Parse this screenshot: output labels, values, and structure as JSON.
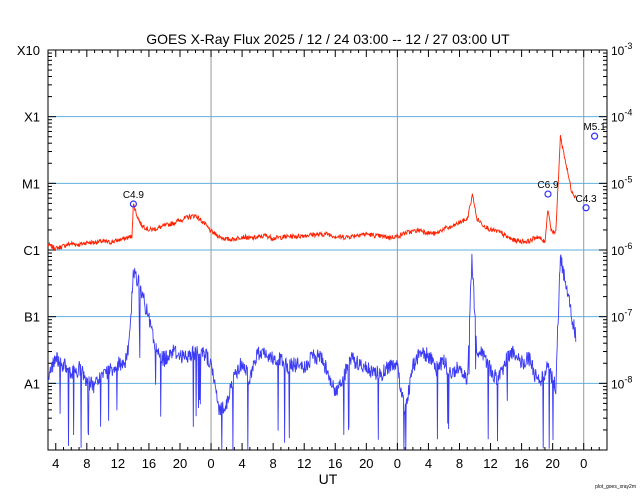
{
  "chart_data": {
    "type": "line",
    "title": "GOES X-Ray Flux   2025 / 12 / 24   03:00 -- 12 / 27   03:00   UT",
    "xlabel": "UT",
    "credit": "plot_goes_xray2m",
    "x_range_hours": [
      0,
      72
    ],
    "x_tick_labels": [
      "4",
      "8",
      "12",
      "16",
      "20",
      "0",
      "4",
      "8",
      "12",
      "16",
      "20",
      "0",
      "4",
      "8",
      "12",
      "16",
      "20",
      "0"
    ],
    "x_tick_hours": [
      1,
      5,
      9,
      13,
      17,
      21,
      25,
      29,
      33,
      37,
      41,
      45,
      49,
      53,
      57,
      61,
      65,
      69
    ],
    "day_boundaries_hours": [
      21,
      45,
      69
    ],
    "y_scale": "log",
    "ylim": [
      1e-09,
      0.001
    ],
    "left_axis_labels": [
      {
        "text": "X10",
        "value": 0.001
      },
      {
        "text": "X1",
        "value": 0.0001
      },
      {
        "text": "M1",
        "value": 1e-05
      },
      {
        "text": "C1",
        "value": 1e-06
      },
      {
        "text": "B1",
        "value": 1e-07
      },
      {
        "text": "A1",
        "value": 1e-08
      }
    ],
    "right_axis_labels": [
      {
        "base": "10",
        "exp": "-3",
        "value": 0.001
      },
      {
        "base": "10",
        "exp": "-4",
        "value": 0.0001
      },
      {
        "base": "10",
        "exp": "-5",
        "value": 1e-05
      },
      {
        "base": "10",
        "exp": "-6",
        "value": 1e-06
      },
      {
        "base": "10",
        "exp": "-7",
        "value": 1e-07
      },
      {
        "base": "10",
        "exp": "-8",
        "value": 1e-08
      }
    ],
    "class_gridlines": [
      0.0001,
      1e-05,
      1e-06,
      1e-07,
      1e-08
    ],
    "flares": [
      {
        "label": "C4.9",
        "x": 11.0,
        "y": 4.9e-06
      },
      {
        "label": "C6.9",
        "x": 64.4,
        "y": 6.9e-06
      },
      {
        "label": "C4.3",
        "x": 69.3,
        "y": 4.3e-06
      },
      {
        "label": "M5.1",
        "x": 70.4,
        "y": 5.1e-05
      }
    ],
    "series": [
      {
        "color": "#ff2000",
        "points": [
          [
            0,
            1.2e-06
          ],
          [
            1,
            1.05e-06
          ],
          [
            2,
            1.15e-06
          ],
          [
            3,
            1.25e-06
          ],
          [
            4,
            1.2e-06
          ],
          [
            5,
            1.3e-06
          ],
          [
            6,
            1.3e-06
          ],
          [
            7,
            1.35e-06
          ],
          [
            8,
            1.3e-06
          ],
          [
            9,
            1.4e-06
          ],
          [
            10,
            1.5e-06
          ],
          [
            10.8,
            1.6e-06
          ],
          [
            11,
            4.9e-06
          ],
          [
            11.5,
            3.2e-06
          ],
          [
            12,
            2.4e-06
          ],
          [
            13,
            2e-06
          ],
          [
            14,
            2.1e-06
          ],
          [
            15,
            2.3e-06
          ],
          [
            16,
            2.5e-06
          ],
          [
            17,
            2.8e-06
          ],
          [
            18,
            3.1e-06
          ],
          [
            19,
            3.3e-06
          ],
          [
            20,
            2.6e-06
          ],
          [
            21,
            1.9e-06
          ],
          [
            22,
            1.6e-06
          ],
          [
            23,
            1.45e-06
          ],
          [
            24,
            1.45e-06
          ],
          [
            25,
            1.6e-06
          ],
          [
            26,
            1.5e-06
          ],
          [
            27,
            1.55e-06
          ],
          [
            28,
            1.65e-06
          ],
          [
            29,
            1.5e-06
          ],
          [
            30,
            1.55e-06
          ],
          [
            31,
            1.6e-06
          ],
          [
            32,
            1.6e-06
          ],
          [
            33,
            1.65e-06
          ],
          [
            34,
            1.7e-06
          ],
          [
            35,
            1.7e-06
          ],
          [
            36,
            1.75e-06
          ],
          [
            37,
            1.6e-06
          ],
          [
            38,
            1.55e-06
          ],
          [
            39,
            1.6e-06
          ],
          [
            40,
            1.7e-06
          ],
          [
            41,
            1.75e-06
          ],
          [
            42,
            1.65e-06
          ],
          [
            43,
            1.6e-06
          ],
          [
            44,
            1.55e-06
          ],
          [
            45,
            1.6e-06
          ],
          [
            46,
            1.8e-06
          ],
          [
            47,
            1.9e-06
          ],
          [
            48,
            2e-06
          ],
          [
            49,
            1.8e-06
          ],
          [
            50,
            1.75e-06
          ],
          [
            51,
            2.1e-06
          ],
          [
            52,
            2.2e-06
          ],
          [
            53,
            2.6e-06
          ],
          [
            54,
            2.9e-06
          ],
          [
            54.7,
            6.9e-06
          ],
          [
            55.2,
            3e-06
          ],
          [
            56,
            2.4e-06
          ],
          [
            57,
            2e-06
          ],
          [
            58,
            1.9e-06
          ],
          [
            59,
            1.6e-06
          ],
          [
            60,
            1.4e-06
          ],
          [
            61,
            1.35e-06
          ],
          [
            62,
            1.35e-06
          ],
          [
            63,
            1.6e-06
          ],
          [
            64,
            1.3e-06
          ],
          [
            64.4,
            4.3e-06
          ],
          [
            64.8,
            2e-06
          ],
          [
            65.4,
            1.8e-06
          ],
          [
            66.0,
            5.1e-05
          ],
          [
            66.7,
            2e-05
          ],
          [
            67.4,
            8e-06
          ],
          [
            68.0,
            6e-06
          ]
        ]
      },
      {
        "color": "#3b3bf5",
        "points": [
          [
            0,
            1.3e-08
          ],
          [
            1,
            2.5e-08
          ],
          [
            2,
            1.9e-08
          ],
          [
            3,
            1.3e-08
          ],
          [
            4,
            1.7e-08
          ],
          [
            5,
            1.1e-08
          ],
          [
            6,
            9e-09
          ],
          [
            7,
            1.3e-08
          ],
          [
            8,
            1.6e-08
          ],
          [
            9,
            1.9e-08
          ],
          [
            10,
            2.1e-08
          ],
          [
            10.5,
            4.5e-08
          ],
          [
            11,
            5e-07
          ],
          [
            12,
            2.5e-07
          ],
          [
            13,
            9e-08
          ],
          [
            14,
            2.9e-08
          ],
          [
            15,
            2.3e-08
          ],
          [
            16,
            3.1e-08
          ],
          [
            17,
            2.7e-08
          ],
          [
            18,
            2.4e-08
          ],
          [
            19,
            2.9e-08
          ],
          [
            20,
            3.1e-08
          ],
          [
            21,
            1.9e-08
          ],
          [
            22,
            4e-09
          ],
          [
            23,
            5e-09
          ],
          [
            24,
            1.3e-08
          ],
          [
            25,
            2.1e-08
          ],
          [
            26,
            1.2e-08
          ],
          [
            27,
            2.8e-08
          ],
          [
            28,
            3e-08
          ],
          [
            29,
            2.3e-08
          ],
          [
            30,
            2.2e-08
          ],
          [
            31,
            1.8e-08
          ],
          [
            32,
            1.9e-08
          ],
          [
            33,
            1.7e-08
          ],
          [
            34,
            2.4e-08
          ],
          [
            35,
            2.6e-08
          ],
          [
            36,
            1.6e-08
          ],
          [
            37,
            7e-09
          ],
          [
            38,
            1.2e-08
          ],
          [
            39,
            2.3e-08
          ],
          [
            40,
            2e-08
          ],
          [
            41,
            1.6e-08
          ],
          [
            42,
            1.5e-08
          ],
          [
            43,
            1.4e-08
          ],
          [
            44,
            1.9e-08
          ],
          [
            45,
            1.7e-08
          ],
          [
            46,
            4e-09
          ],
          [
            47,
            1.8e-08
          ],
          [
            48,
            3e-08
          ],
          [
            49,
            2.6e-08
          ],
          [
            50,
            1.6e-08
          ],
          [
            51,
            2.1e-08
          ],
          [
            52,
            1.3e-08
          ],
          [
            53,
            1.9e-08
          ],
          [
            54,
            1.1e-08
          ],
          [
            54.6,
            7.2e-07
          ],
          [
            55.2,
            3.3e-08
          ],
          [
            56,
            2.9e-08
          ],
          [
            57,
            1.6e-08
          ],
          [
            58,
            1.1e-08
          ],
          [
            59,
            2.2e-08
          ],
          [
            60,
            3e-08
          ],
          [
            61,
            2e-08
          ],
          [
            62,
            2.3e-08
          ],
          [
            63,
            1.1e-08
          ],
          [
            64,
            1.3e-08
          ],
          [
            64.4,
            2.3e-08
          ],
          [
            64.8,
            1.3e-08
          ],
          [
            65.4,
            9e-09
          ],
          [
            66.0,
            8e-07
          ],
          [
            66.7,
            3e-07
          ],
          [
            67.4,
            1.1e-07
          ],
          [
            68.0,
            5e-08
          ]
        ]
      }
    ]
  }
}
